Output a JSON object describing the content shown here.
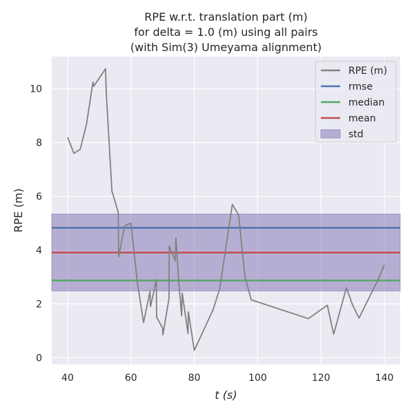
{
  "chart_data": {
    "type": "line",
    "title_lines": [
      "RPE w.r.t. translation part (m)",
      "for delta = 1.0 (m) using all pairs",
      "(with Sim(3) Umeyama alignment)"
    ],
    "xlabel": "t (s)",
    "ylabel": "RPE (m)",
    "xlim": [
      35,
      145
    ],
    "ylim": [
      -0.25,
      11.2
    ],
    "xticks": [
      "40",
      "60",
      "80",
      "100",
      "120",
      "140"
    ],
    "yticks": [
      "0",
      "2",
      "4",
      "6",
      "8",
      "10"
    ],
    "grid": true,
    "legend_position": "top-right",
    "series": [
      {
        "name": "RPE (m)",
        "color": "#808080",
        "x": [
          40,
          42,
          44,
          46,
          48,
          48.3,
          52,
          52.2,
          54,
          56,
          56.1,
          58,
          60,
          62,
          64,
          66,
          66.2,
          68,
          68.1,
          70,
          70.1,
          72,
          72.1,
          74,
          74.2,
          75,
          76,
          76.2,
          78,
          78.1,
          80,
          86,
          88,
          92,
          94,
          96,
          98,
          116,
          122,
          124,
          128,
          130,
          132,
          138,
          140
        ],
        "y": [
          8.2,
          7.6,
          7.75,
          8.7,
          10.25,
          10.1,
          10.75,
          9.85,
          6.2,
          5.4,
          3.75,
          4.9,
          5.0,
          2.8,
          1.3,
          2.45,
          1.9,
          2.9,
          1.5,
          1.1,
          0.85,
          2.2,
          4.15,
          3.6,
          4.45,
          3.0,
          1.55,
          2.4,
          0.9,
          1.7,
          0.27,
          1.8,
          2.55,
          5.7,
          5.3,
          3.0,
          2.15,
          1.45,
          1.95,
          0.87,
          2.6,
          1.95,
          1.47,
          2.9,
          3.45
        ]
      }
    ],
    "stats": {
      "rmse": 4.83,
      "median": 2.87,
      "mean": 3.91,
      "std": 1.43
    },
    "legend": [
      {
        "label": "RPE (m)",
        "color": "#808080",
        "kind": "line"
      },
      {
        "label": "rmse",
        "color": "#4c72b0",
        "kind": "line"
      },
      {
        "label": "median",
        "color": "#55a868",
        "kind": "line"
      },
      {
        "label": "mean",
        "color": "#c44e52",
        "kind": "line"
      },
      {
        "label": "std",
        "color": "#8172b2",
        "kind": "patch"
      }
    ]
  }
}
